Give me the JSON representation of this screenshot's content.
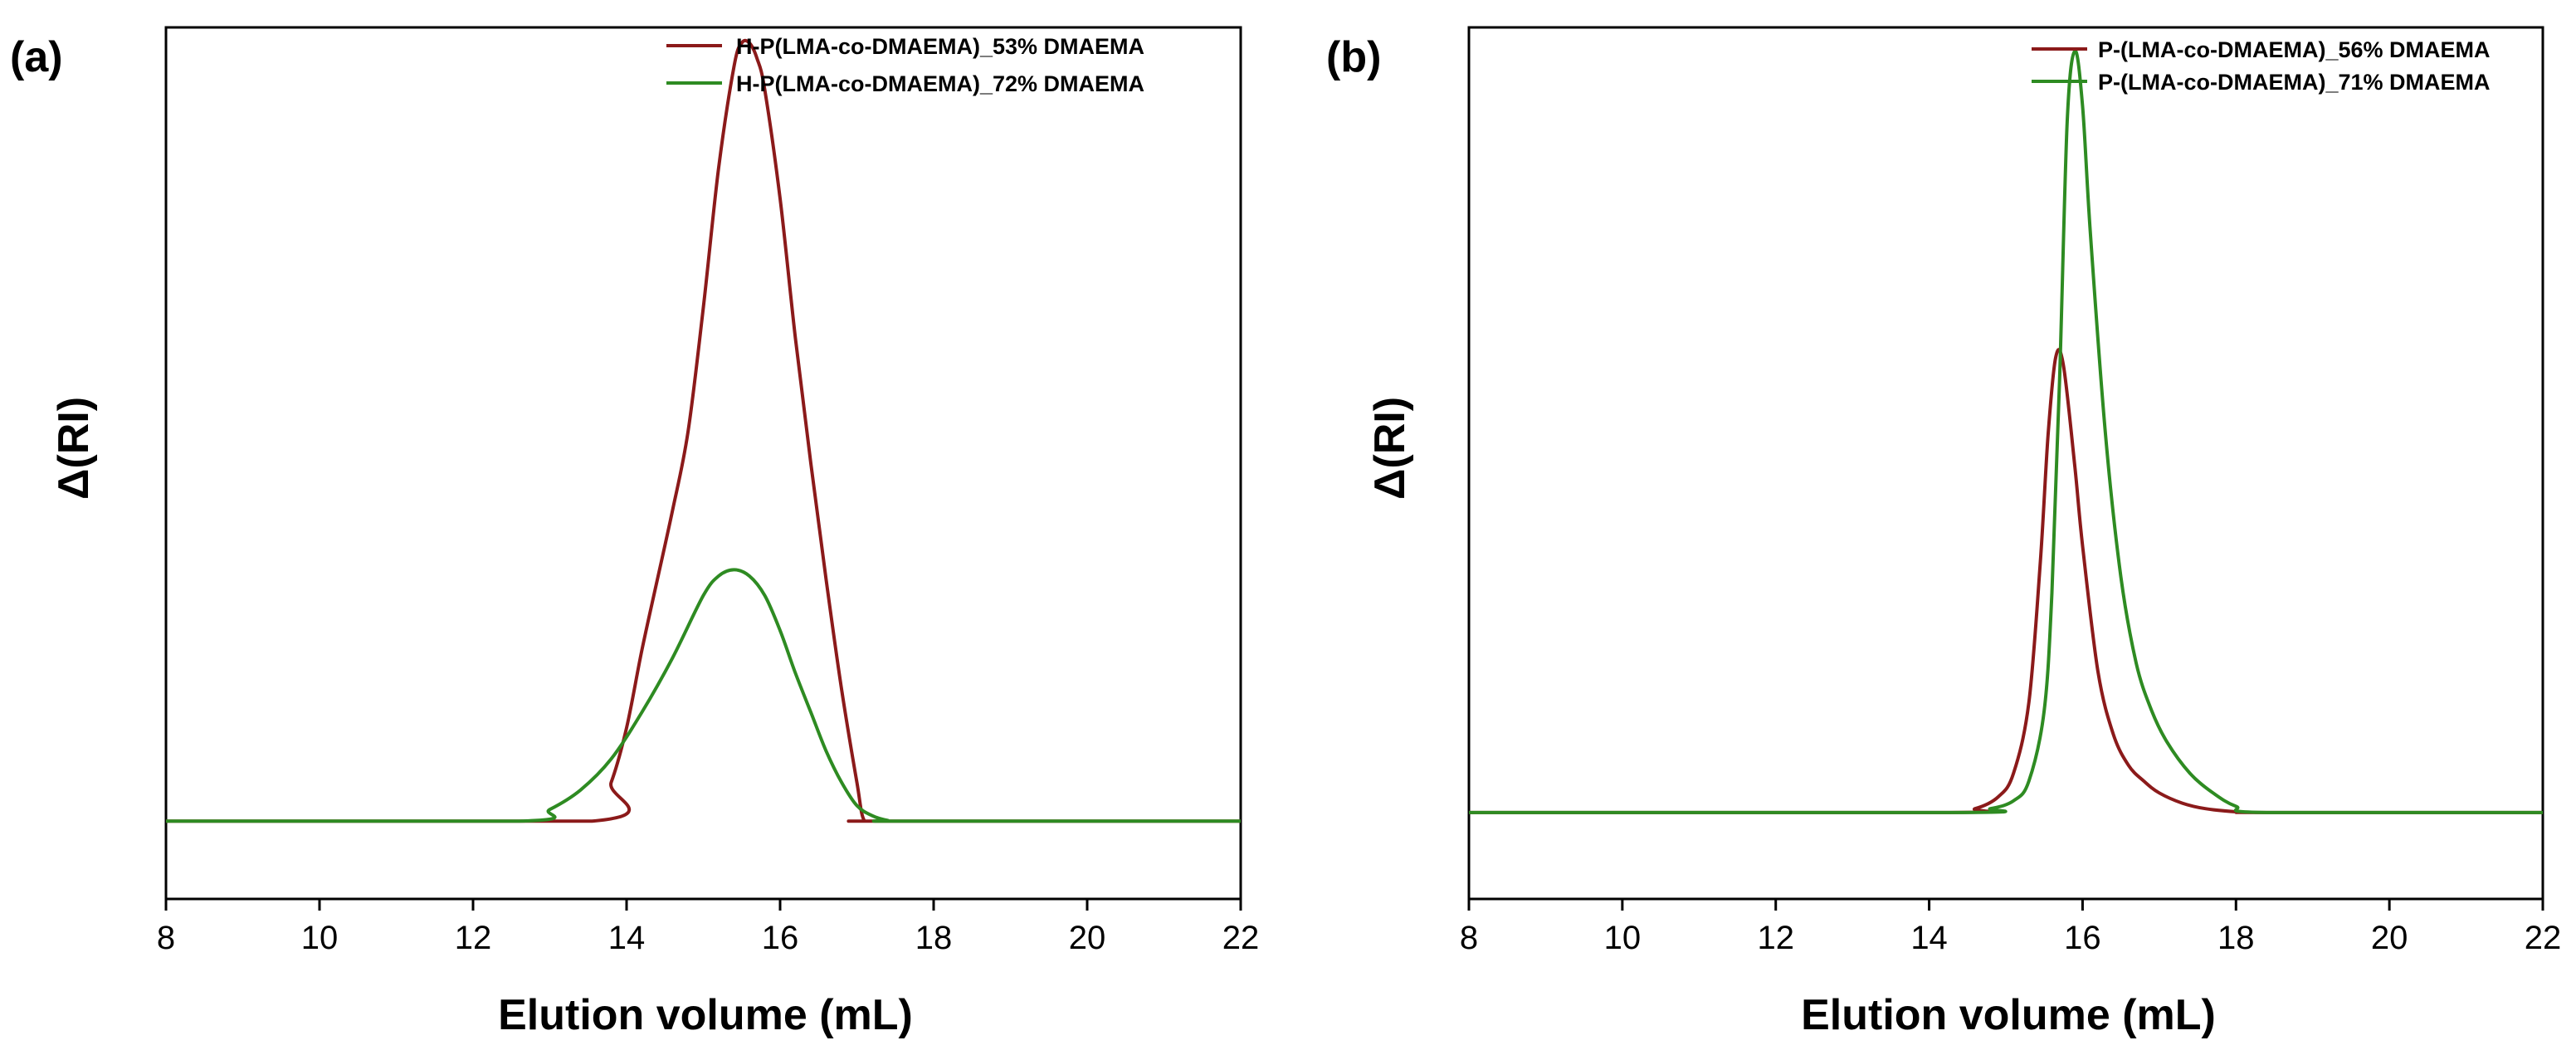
{
  "chart_data": [
    {
      "type": "line",
      "panel_label": "(a)",
      "xlabel": "Elution volume (mL)",
      "ylabel": "Δ(RI)",
      "xlim": [
        8,
        22
      ],
      "ylim": [
        -0.1,
        1.02
      ],
      "xticks": [
        8,
        10,
        12,
        14,
        16,
        18,
        20,
        22
      ],
      "xtick_labels": [
        "8",
        "10",
        "12",
        "14",
        "16",
        "18",
        "20",
        "22"
      ],
      "legend_position": "top-right",
      "series": [
        {
          "name": "H-P(LMA-co-DMAEMA)_53% DMAEMA",
          "color": "#8b1a1a",
          "x": [
            8,
            13.55,
            13.8,
            14.0,
            14.2,
            14.4,
            14.6,
            14.8,
            15.0,
            15.2,
            15.4,
            15.5,
            15.6,
            15.7,
            15.8,
            16.0,
            16.2,
            16.4,
            16.6,
            16.8,
            17.0,
            17.1,
            17.3,
            22
          ],
          "y": [
            0,
            0,
            0.05,
            0.12,
            0.22,
            0.31,
            0.4,
            0.5,
            0.66,
            0.84,
            0.97,
            1.0,
            1.0,
            0.98,
            0.94,
            0.8,
            0.62,
            0.46,
            0.31,
            0.17,
            0.05,
            0,
            0,
            0
          ]
        },
        {
          "name": "H-P(LMA-co-DMAEMA)_72% DMAEMA",
          "color": "#2e8b22",
          "x": [
            8,
            12.6,
            13.0,
            13.4,
            13.8,
            14.2,
            14.6,
            15.0,
            15.2,
            15.4,
            15.6,
            15.8,
            16.0,
            16.2,
            16.4,
            16.6,
            16.8,
            17.0,
            17.2,
            17.4,
            17.6,
            22
          ],
          "y": [
            0,
            0,
            0.015,
            0.04,
            0.08,
            0.14,
            0.21,
            0.29,
            0.315,
            0.323,
            0.315,
            0.29,
            0.245,
            0.19,
            0.14,
            0.09,
            0.05,
            0.02,
            0.007,
            0.001,
            0,
            0
          ]
        }
      ]
    },
    {
      "type": "line",
      "panel_label": "(b)",
      "xlabel": "Elution volume (mL)",
      "ylabel": "Δ(RI)",
      "xlim": [
        8,
        22
      ],
      "ylim": [
        -0.11,
        1.0
      ],
      "xticks": [
        8,
        10,
        12,
        14,
        16,
        18,
        20,
        22
      ],
      "xtick_labels": [
        "8",
        "10",
        "12",
        "14",
        "16",
        "18",
        "20",
        "22"
      ],
      "legend_position": "top-right",
      "series": [
        {
          "name": "P-(LMA-co-DMAEMA)_56% DMAEMA",
          "color": "#8b1a1a",
          "x": [
            8,
            14.2,
            14.6,
            14.9,
            15.1,
            15.3,
            15.45,
            15.55,
            15.65,
            15.75,
            15.9,
            16.0,
            16.2,
            16.4,
            16.6,
            16.8,
            17.0,
            17.3,
            17.6,
            18.0,
            18.4,
            22
          ],
          "y": [
            0,
            0,
            0.005,
            0.02,
            0.05,
            0.14,
            0.32,
            0.48,
            0.58,
            0.57,
            0.44,
            0.34,
            0.18,
            0.1,
            0.06,
            0.04,
            0.025,
            0.012,
            0.005,
            0.001,
            0,
            0
          ]
        },
        {
          "name": "P-(LMA-co-DMAEMA)_71% DMAEMA",
          "color": "#2e8b22",
          "x": [
            8,
            14.4,
            14.8,
            15.1,
            15.3,
            15.5,
            15.6,
            15.7,
            15.8,
            15.9,
            16.0,
            16.1,
            16.3,
            16.5,
            16.7,
            16.9,
            17.1,
            17.4,
            17.7,
            18.0,
            18.4,
            22
          ],
          "y": [
            0,
            0,
            0.005,
            0.015,
            0.04,
            0.13,
            0.28,
            0.55,
            0.88,
            0.97,
            0.9,
            0.74,
            0.48,
            0.3,
            0.19,
            0.13,
            0.09,
            0.05,
            0.025,
            0.008,
            0,
            0
          ]
        }
      ]
    }
  ]
}
